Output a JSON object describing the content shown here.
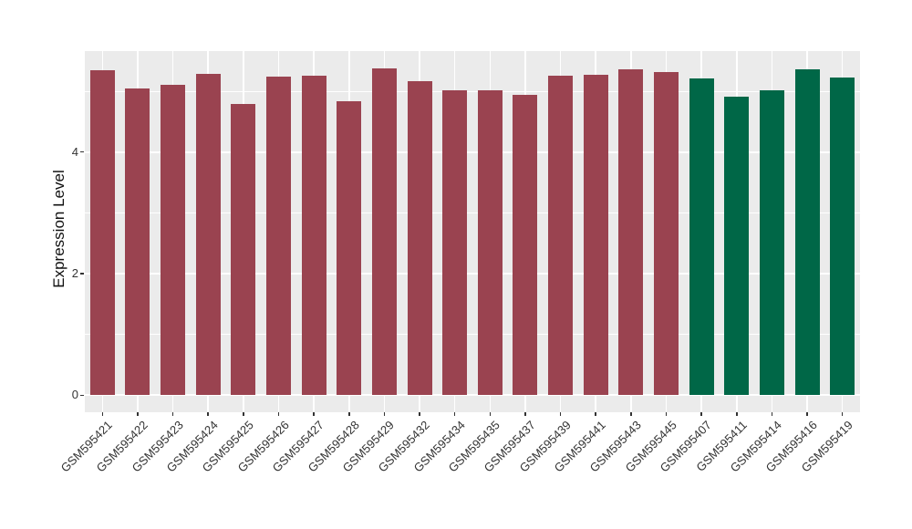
{
  "colors": {
    "red_group": "#9A4350",
    "green_group": "#006747",
    "panel_background": "#EBEBEB",
    "grid": "#FFFFFF",
    "axis_text": "#333333",
    "axis_title": "#111111",
    "tick_mark": "#333333"
  },
  "y_axis": {
    "title": "Expression Level",
    "tick_values": [
      0,
      2,
      4
    ],
    "tick_labels": [
      "0",
      "2",
      "4"
    ],
    "minor_tick_values": [
      1,
      3,
      5
    ]
  },
  "chart_data": {
    "type": "bar",
    "title": "",
    "xlabel": "",
    "ylabel": "Expression Level",
    "ylim": [
      -0.28,
      5.66
    ],
    "grid": true,
    "legend": false,
    "categories": [
      "GSM595421",
      "GSM595422",
      "GSM595423",
      "GSM595424",
      "GSM595425",
      "GSM595426",
      "GSM595427",
      "GSM595428",
      "GSM595429",
      "GSM595432",
      "GSM595434",
      "GSM595435",
      "GSM595437",
      "GSM595439",
      "GSM595441",
      "GSM595443",
      "GSM595445",
      "GSM595407",
      "GSM595411",
      "GSM595414",
      "GSM595416",
      "GSM595419"
    ],
    "values": [
      5.35,
      5.04,
      5.1,
      5.28,
      4.79,
      5.24,
      5.26,
      4.84,
      5.37,
      5.17,
      5.02,
      5.01,
      4.94,
      5.26,
      5.27,
      5.36,
      5.31,
      5.21,
      4.91,
      5.01,
      5.36,
      5.23
    ],
    "bars": [
      {
        "label": "GSM595421",
        "value": 5.35,
        "color": "#9A4350"
      },
      {
        "label": "GSM595422",
        "value": 5.04,
        "color": "#9A4350"
      },
      {
        "label": "GSM595423",
        "value": 5.1,
        "color": "#9A4350"
      },
      {
        "label": "GSM595424",
        "value": 5.28,
        "color": "#9A4350"
      },
      {
        "label": "GSM595425",
        "value": 4.79,
        "color": "#9A4350"
      },
      {
        "label": "GSM595426",
        "value": 5.24,
        "color": "#9A4350"
      },
      {
        "label": "GSM595427",
        "value": 5.26,
        "color": "#9A4350"
      },
      {
        "label": "GSM595428",
        "value": 4.84,
        "color": "#9A4350"
      },
      {
        "label": "GSM595429",
        "value": 5.37,
        "color": "#9A4350"
      },
      {
        "label": "GSM595432",
        "value": 5.17,
        "color": "#9A4350"
      },
      {
        "label": "GSM595434",
        "value": 5.02,
        "color": "#9A4350"
      },
      {
        "label": "GSM595435",
        "value": 5.01,
        "color": "#9A4350"
      },
      {
        "label": "GSM595437",
        "value": 4.94,
        "color": "#9A4350"
      },
      {
        "label": "GSM595439",
        "value": 5.26,
        "color": "#9A4350"
      },
      {
        "label": "GSM595441",
        "value": 5.27,
        "color": "#9A4350"
      },
      {
        "label": "GSM595443",
        "value": 5.36,
        "color": "#9A4350"
      },
      {
        "label": "GSM595445",
        "value": 5.31,
        "color": "#9A4350"
      },
      {
        "label": "GSM595407",
        "value": 5.21,
        "color": "#006747"
      },
      {
        "label": "GSM595411",
        "value": 4.91,
        "color": "#006747"
      },
      {
        "label": "GSM595414",
        "value": 5.01,
        "color": "#006747"
      },
      {
        "label": "GSM595416",
        "value": 5.36,
        "color": "#006747"
      },
      {
        "label": "GSM595419",
        "value": 5.23,
        "color": "#006747"
      }
    ]
  }
}
